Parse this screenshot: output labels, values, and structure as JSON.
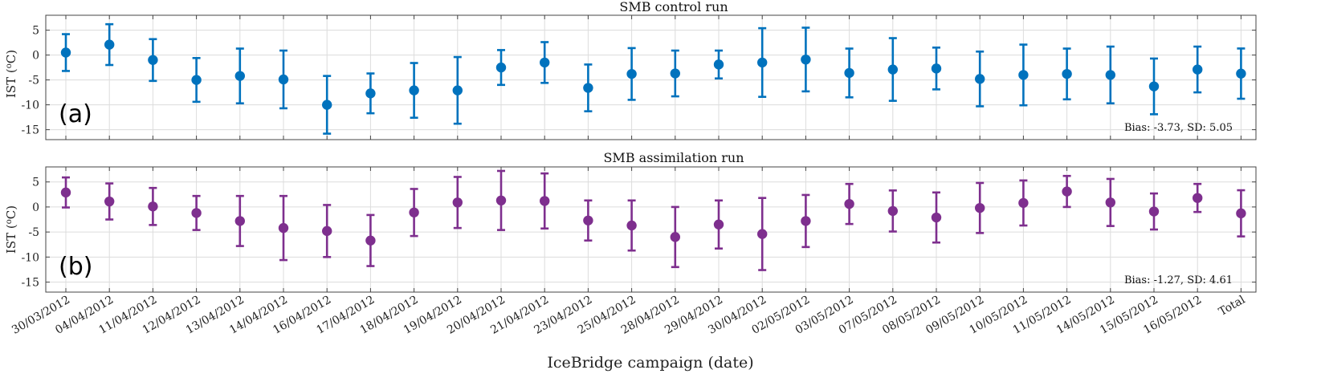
{
  "chart_data": {
    "type": "errorbar",
    "xlabel": "IceBridge campaign (date)",
    "categories": [
      "30/03/2012",
      "04/04/2012",
      "11/04/2012",
      "12/04/2012",
      "13/04/2012",
      "14/04/2012",
      "16/04/2012",
      "17/04/2012",
      "18/04/2012",
      "19/04/2012",
      "20/04/2012",
      "21/04/2012",
      "23/04/2012",
      "25/04/2012",
      "28/04/2012",
      "29/04/2012",
      "30/04/2012",
      "02/05/2012",
      "03/05/2012",
      "07/05/2012",
      "08/05/2012",
      "09/05/2012",
      "10/05/2012",
      "11/05/2012",
      "14/05/2012",
      "15/05/2012",
      "16/05/2012",
      "Total"
    ],
    "panels": [
      {
        "title": "SMB control run",
        "panel_label": "(a)",
        "ylabel": "IST (",
        "ylabel_sup": "o",
        "ylabel_tail": "C)",
        "ylim": [
          -17,
          8
        ],
        "yticks": [
          5,
          0,
          -5,
          -10,
          -15
        ],
        "ytick_labels": [
          "5",
          "0",
          "-5",
          "-10",
          "-15"
        ],
        "color": "#0072BD",
        "stats": "Bias: -3.73, SD: 5.05",
        "means": [
          0.5,
          2.1,
          -1.0,
          -5.0,
          -4.2,
          -4.9,
          -10.0,
          -7.7,
          -7.1,
          -7.1,
          -2.5,
          -1.5,
          -6.6,
          -3.8,
          -3.7,
          -1.9,
          -1.5,
          -0.9,
          -3.6,
          -2.9,
          -2.7,
          -4.8,
          -4.0,
          -3.8,
          -4.0,
          -6.3,
          -2.9,
          -3.73
        ],
        "sd": [
          3.7,
          4.1,
          4.2,
          4.4,
          5.5,
          5.8,
          5.8,
          4.0,
          5.5,
          6.7,
          3.5,
          4.1,
          4.7,
          5.2,
          4.6,
          2.8,
          6.9,
          6.4,
          4.9,
          6.3,
          4.2,
          5.5,
          6.1,
          5.1,
          5.7,
          5.6,
          4.6,
          5.05
        ]
      },
      {
        "title": "SMB assimilation run",
        "panel_label": "(b)",
        "ylabel": "IST (",
        "ylabel_sup": "o",
        "ylabel_tail": "C)",
        "ylim": [
          -17,
          8
        ],
        "yticks": [
          5,
          0,
          -5,
          -10,
          -15
        ],
        "ytick_labels": [
          "5",
          "0",
          "-5",
          "-10",
          "-15"
        ],
        "color": "#7E2F8E",
        "stats": "Bias: -1.27, SD: 4.61",
        "means": [
          2.9,
          1.1,
          0.1,
          -1.2,
          -2.8,
          -4.2,
          -4.8,
          -6.7,
          -1.1,
          0.9,
          1.3,
          1.2,
          -2.7,
          -3.7,
          -6.0,
          -3.5,
          -5.4,
          -2.8,
          0.6,
          -0.8,
          -2.1,
          -0.2,
          0.8,
          3.1,
          0.9,
          -0.9,
          1.8,
          -1.27
        ],
        "sd": [
          3.0,
          3.6,
          3.7,
          3.4,
          5.0,
          6.4,
          5.2,
          5.1,
          4.7,
          5.1,
          5.9,
          5.5,
          4.0,
          5.0,
          6.0,
          4.8,
          7.2,
          5.2,
          4.0,
          4.1,
          5.0,
          5.0,
          4.5,
          3.1,
          4.7,
          3.6,
          2.8,
          4.61
        ]
      }
    ]
  }
}
